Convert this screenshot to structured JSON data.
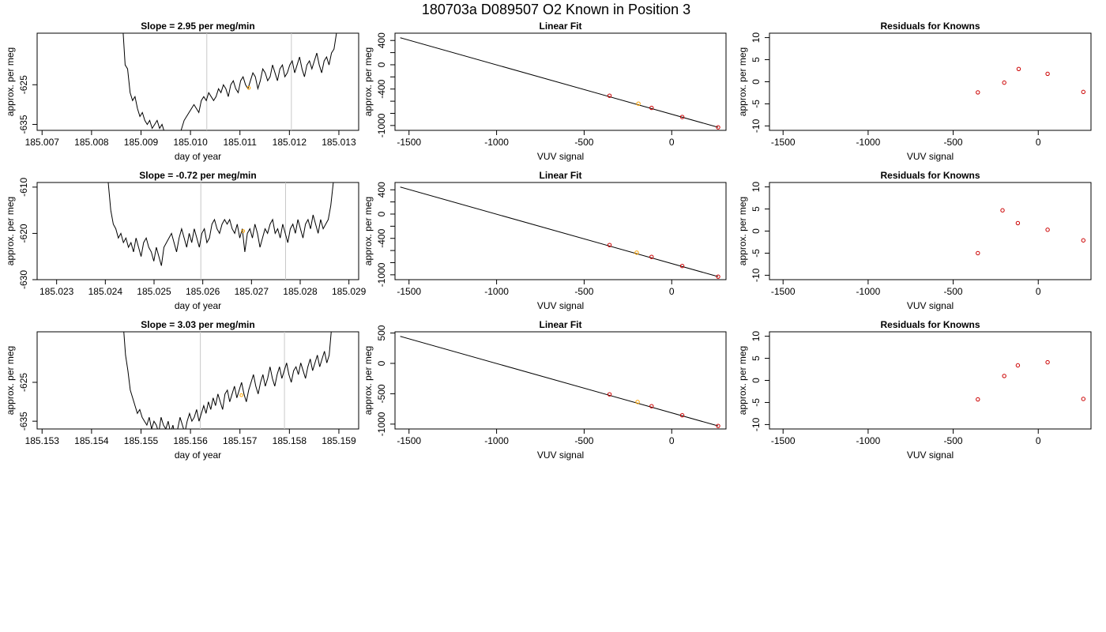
{
  "figure": {
    "title": "180703a      D089507   O2 Known in Position  3"
  },
  "colors": {
    "line": "#000000",
    "grid_vline": "#c8c8c8",
    "highlight_point": "#ffa500",
    "known_point": "#cc0000",
    "residual_point": "#cc0000"
  },
  "chart_data": [
    {
      "id": "ts1",
      "type": "line",
      "title": "Slope =  2.95  per meg/min",
      "xlabel": "day of year",
      "ylabel": "approx. per meg",
      "xlim": [
        185.0069,
        185.0134
      ],
      "ylim": [
        -636.5,
        -612
      ],
      "xticks": [
        "185.007",
        "185.008",
        "185.009",
        "185.010",
        "185.011",
        "185.012",
        "185.013"
      ],
      "yticks": [
        "-625",
        "-635"
      ],
      "vlines": [
        185.01033,
        185.01204
      ],
      "x_start": 185.00863,
      "x_end": 185.01305,
      "trace": [
        -610,
        -620,
        -621,
        -627,
        -629,
        -628,
        -631,
        -633,
        -632,
        -634,
        -635,
        -634,
        -636,
        -635,
        -634,
        -636,
        -635,
        -637,
        -638,
        -637,
        -639,
        -640,
        -637,
        -638,
        -636,
        -634,
        -633,
        -632,
        -631,
        -630,
        -631,
        -632,
        -629,
        -628,
        -629,
        -627,
        -628,
        -629,
        -628,
        -626,
        -627,
        -625,
        -626,
        -628,
        -625,
        -624,
        -626,
        -627,
        -624,
        -623,
        -625,
        -626,
        -624,
        -622,
        -623,
        -626,
        -624,
        -621,
        -622,
        -624,
        -623,
        -620,
        -622,
        -624,
        -621,
        -620,
        -623,
        -622,
        -620,
        -619,
        -622,
        -620,
        -618,
        -621,
        -623,
        -620,
        -619,
        -621,
        -619,
        -617,
        -620,
        -622,
        -619,
        -618,
        -620,
        -617,
        -616,
        -612,
        -611,
        -610
      ],
      "highlight": {
        "x": 185.01118,
        "y": -625.8
      }
    },
    {
      "id": "fit1",
      "type": "scatter",
      "title": "Linear Fit",
      "xlabel": "VUV signal",
      "ylabel": "approx. per meg",
      "xlim": [
        -1580,
        310
      ],
      "ylim": [
        -1080,
        520
      ],
      "xticks": [
        -1500,
        -1000,
        -500,
        0
      ],
      "yticks": [
        -1000,
        -800,
        -600,
        -400,
        -200,
        0,
        200,
        400
      ],
      "ytick_labels": {
        "-1000": "-1000",
        "-400": "-400",
        "0": "0",
        "400": "400"
      },
      "line": {
        "x": [
          -1550,
          265
        ],
        "y": [
          445,
          -1030
        ]
      },
      "points": [
        {
          "x": -355,
          "y": -510,
          "c": "known_point"
        },
        {
          "x": -190,
          "y": -640,
          "c": "highlight_point"
        },
        {
          "x": -115,
          "y": -710,
          "c": "known_point"
        },
        {
          "x": 60,
          "y": -860,
          "c": "known_point"
        },
        {
          "x": 265,
          "y": -1030,
          "c": "known_point"
        }
      ]
    },
    {
      "id": "res1",
      "type": "scatter",
      "title": "Residuals for Knowns",
      "xlabel": "VUV signal",
      "ylabel": "approx. per meg",
      "xlim": [
        -1580,
        310
      ],
      "ylim": [
        -11,
        11
      ],
      "xticks": [
        -1500,
        -1000,
        -500,
        0
      ],
      "yticks": [
        -10,
        -5,
        0,
        5,
        10
      ],
      "points": [
        {
          "x": -355,
          "y": -2.4,
          "c": "residual_point"
        },
        {
          "x": -200,
          "y": -0.2,
          "c": "residual_point"
        },
        {
          "x": -115,
          "y": 2.9,
          "c": "residual_point"
        },
        {
          "x": 55,
          "y": 1.8,
          "c": "residual_point"
        },
        {
          "x": 265,
          "y": -2.3,
          "c": "residual_point"
        }
      ]
    },
    {
      "id": "ts2",
      "type": "line",
      "title": "Slope =  -0.72  per meg/min",
      "xlabel": "day of year",
      "ylabel": "approx. per meg",
      "xlim": [
        185.0226,
        185.0292
      ],
      "ylim": [
        -630,
        -609
      ],
      "xticks": [
        "185.023",
        "185.024",
        "185.025",
        "185.026",
        "185.027",
        "185.028",
        "185.029"
      ],
      "yticks": [
        "-610",
        "-620",
        "-630"
      ],
      "vlines": [
        185.02596,
        185.0277
      ],
      "x_start": 185.02406,
      "x_end": 185.02868,
      "trace": [
        -609,
        -615,
        -618,
        -619,
        -621,
        -620,
        -622,
        -621,
        -623,
        -622,
        -624,
        -621,
        -623,
        -625,
        -622,
        -621,
        -623,
        -624,
        -626,
        -623,
        -625,
        -627,
        -623,
        -622,
        -621,
        -620,
        -622,
        -624,
        -621,
        -619,
        -621,
        -623,
        -620,
        -622,
        -619,
        -621,
        -623,
        -620,
        -619,
        -622,
        -621,
        -618,
        -617,
        -619,
        -620,
        -618,
        -617,
        -618,
        -617,
        -619,
        -620,
        -618,
        -621,
        -619,
        -624,
        -620,
        -619,
        -621,
        -618,
        -620,
        -623,
        -621,
        -619,
        -620,
        -618,
        -617,
        -620,
        -619,
        -621,
        -618,
        -620,
        -622,
        -619,
        -618,
        -620,
        -617,
        -619,
        -621,
        -618,
        -617,
        -619,
        -616,
        -618,
        -620,
        -617,
        -619,
        -618,
        -617,
        -614,
        -609
      ],
      "highlight": {
        "x": 185.02683,
        "y": -619.5
      }
    },
    {
      "id": "fit2",
      "type": "scatter",
      "title": "Linear Fit",
      "xlabel": "VUV signal",
      "ylabel": "approx. per meg",
      "xlim": [
        -1580,
        310
      ],
      "ylim": [
        -1080,
        520
      ],
      "xticks": [
        -1500,
        -1000,
        -500,
        0
      ],
      "yticks": [
        -1000,
        -800,
        -600,
        -400,
        -200,
        0,
        200,
        400
      ],
      "ytick_labels": {
        "-1000": "-1000",
        "-400": "-400",
        "0": "0",
        "400": "400"
      },
      "line": {
        "x": [
          -1550,
          265
        ],
        "y": [
          445,
          -1030
        ]
      },
      "points": [
        {
          "x": -355,
          "y": -510,
          "c": "known_point"
        },
        {
          "x": -200,
          "y": -635,
          "c": "highlight_point"
        },
        {
          "x": -115,
          "y": -705,
          "c": "known_point"
        },
        {
          "x": 60,
          "y": -855,
          "c": "known_point"
        },
        {
          "x": 265,
          "y": -1030,
          "c": "known_point"
        }
      ]
    },
    {
      "id": "res2",
      "type": "scatter",
      "title": "Residuals for Knowns",
      "xlabel": "VUV signal",
      "ylabel": "approx. per meg",
      "xlim": [
        -1580,
        310
      ],
      "ylim": [
        -11,
        11
      ],
      "xticks": [
        -1500,
        -1000,
        -500,
        0
      ],
      "yticks": [
        -10,
        -5,
        0,
        5,
        10
      ],
      "points": [
        {
          "x": -355,
          "y": -5.0,
          "c": "residual_point"
        },
        {
          "x": -210,
          "y": 4.7,
          "c": "residual_point"
        },
        {
          "x": -120,
          "y": 1.8,
          "c": "residual_point"
        },
        {
          "x": 55,
          "y": 0.3,
          "c": "residual_point"
        },
        {
          "x": 265,
          "y": -2.1,
          "c": "residual_point"
        }
      ]
    },
    {
      "id": "ts3",
      "type": "line",
      "title": "Slope =  3.03  per meg/min",
      "xlabel": "day of year",
      "ylabel": "approx. per meg",
      "xlim": [
        185.1529,
        185.1594
      ],
      "ylim": [
        -637,
        -612
      ],
      "xticks": [
        "185.153",
        "185.154",
        "185.155",
        "185.156",
        "185.157",
        "185.158",
        "185.159"
      ],
      "yticks": [
        "-625",
        "-635"
      ],
      "vlines": [
        185.1562,
        185.1579
      ],
      "x_start": 185.15464,
      "x_end": 185.1589,
      "trace": [
        -610,
        -618,
        -622,
        -627,
        -629,
        -631,
        -633,
        -632,
        -634,
        -635,
        -636,
        -634,
        -637,
        -635,
        -636,
        -638,
        -634,
        -636,
        -637,
        -635,
        -638,
        -636,
        -639,
        -637,
        -634,
        -636,
        -638,
        -635,
        -633,
        -635,
        -634,
        -632,
        -635,
        -633,
        -631,
        -633,
        -630,
        -632,
        -629,
        -631,
        -628,
        -630,
        -632,
        -628,
        -627,
        -630,
        -628,
        -626,
        -629,
        -627,
        -625,
        -628,
        -630,
        -627,
        -625,
        -623,
        -626,
        -628,
        -625,
        -623,
        -626,
        -624,
        -621,
        -624,
        -626,
        -623,
        -621,
        -624,
        -622,
        -620,
        -623,
        -625,
        -622,
        -621,
        -623,
        -620,
        -622,
        -624,
        -621,
        -619,
        -622,
        -620,
        -618,
        -621,
        -619,
        -617,
        -620,
        -618,
        -611,
        -610
      ],
      "highlight": {
        "x": 185.15703,
        "y": -628.3
      }
    },
    {
      "id": "fit3",
      "type": "scatter",
      "title": "Linear Fit",
      "xlabel": "VUV signal",
      "ylabel": "approx. per meg",
      "xlim": [
        -1580,
        310
      ],
      "ylim": [
        -1080,
        520
      ],
      "xticks": [
        -1500,
        -1000,
        -500,
        0
      ],
      "yticks": [
        -1000,
        -500,
        0,
        500
      ],
      "ytick_labels": {
        "-1000": "-1000",
        "-500": "-500",
        "0": "0",
        "500": "500"
      },
      "line": {
        "x": [
          -1550,
          265
        ],
        "y": [
          445,
          -1030
        ]
      },
      "points": [
        {
          "x": -355,
          "y": -510,
          "c": "known_point"
        },
        {
          "x": -195,
          "y": -635,
          "c": "highlight_point"
        },
        {
          "x": -115,
          "y": -705,
          "c": "known_point"
        },
        {
          "x": 60,
          "y": -855,
          "c": "known_point"
        },
        {
          "x": 265,
          "y": -1030,
          "c": "known_point"
        }
      ]
    },
    {
      "id": "res3",
      "type": "scatter",
      "title": "Residuals for Knowns",
      "xlabel": "VUV signal",
      "ylabel": "approx. per meg",
      "xlim": [
        -1580,
        310
      ],
      "ylim": [
        -11,
        11
      ],
      "xticks": [
        -1500,
        -1000,
        -500,
        0
      ],
      "yticks": [
        -10,
        -5,
        0,
        5,
        10
      ],
      "points": [
        {
          "x": -355,
          "y": -4.3,
          "c": "residual_point"
        },
        {
          "x": -200,
          "y": 1.0,
          "c": "residual_point"
        },
        {
          "x": -120,
          "y": 3.4,
          "c": "residual_point"
        },
        {
          "x": 55,
          "y": 4.1,
          "c": "residual_point"
        },
        {
          "x": 265,
          "y": -4.2,
          "c": "residual_point"
        }
      ]
    }
  ]
}
